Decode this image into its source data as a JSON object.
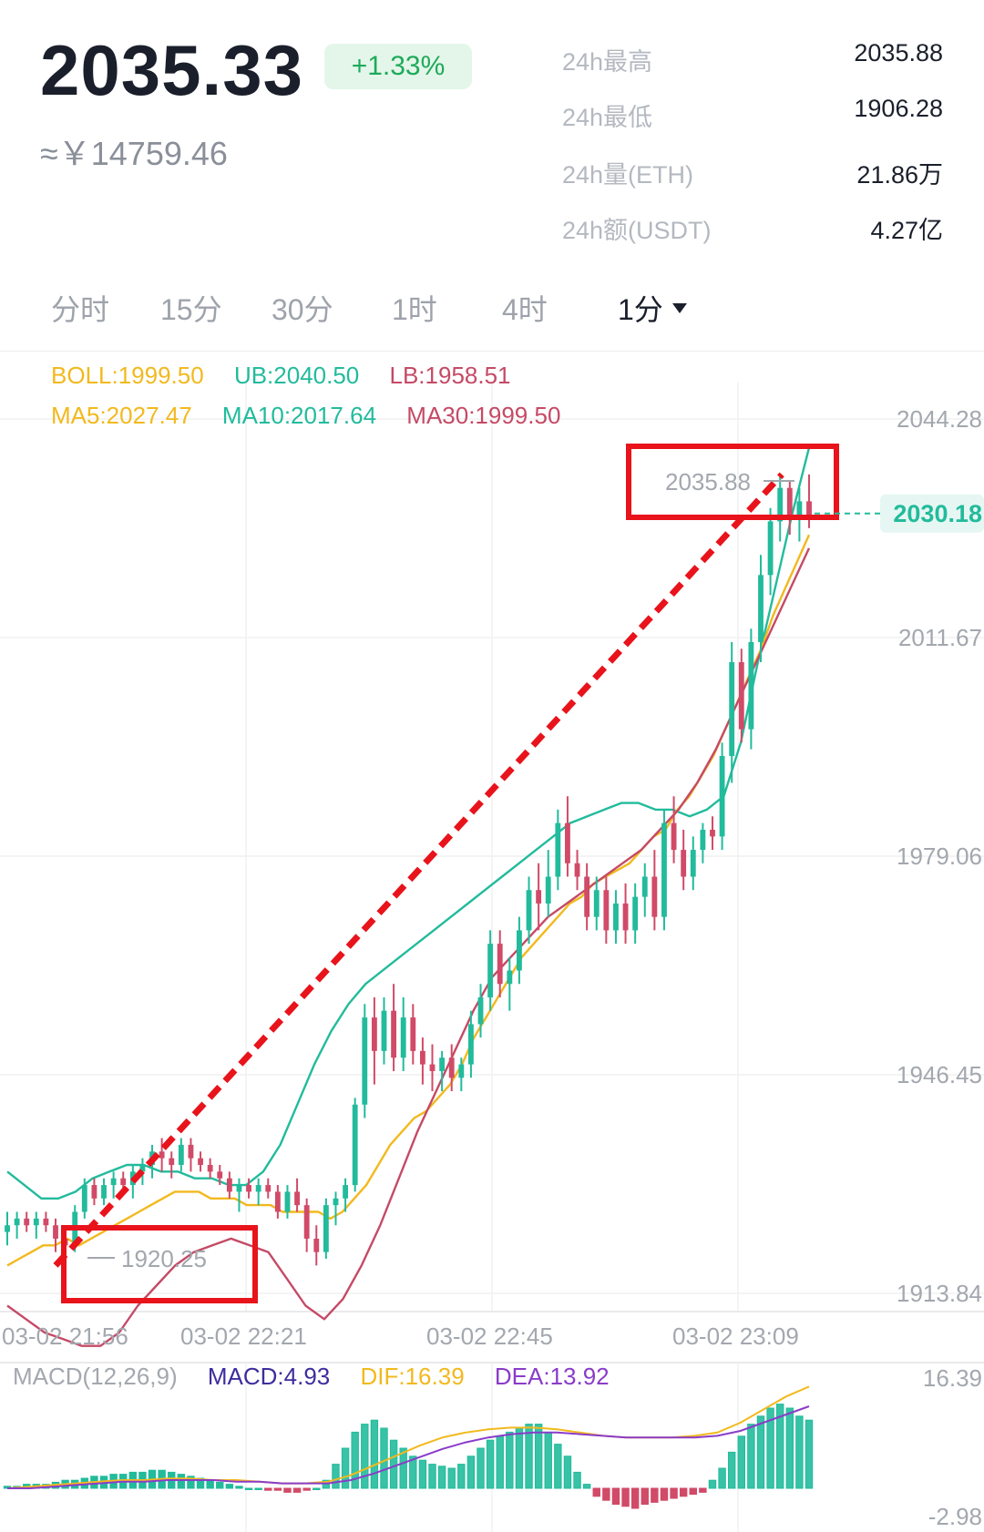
{
  "ticker": {
    "price": "2035.33",
    "change": "+1.33%",
    "cny": "≈￥14759.46"
  },
  "stats": [
    {
      "label": "24h最高",
      "value": "2035.88"
    },
    {
      "label": "24h最低",
      "value": "1906.28"
    },
    {
      "label": "24h量(ETH)",
      "value": "21.86万"
    },
    {
      "label": "24h额(USDT)",
      "value": "4.27亿"
    }
  ],
  "tabs": [
    {
      "label": "分时",
      "active": false
    },
    {
      "label": "15分",
      "active": false
    },
    {
      "label": "30分",
      "active": false
    },
    {
      "label": "1时",
      "active": false
    },
    {
      "label": "4时",
      "active": false
    },
    {
      "label": "1分",
      "active": true
    }
  ],
  "indicators": {
    "boll": "BOLL:1999.50",
    "ub": "UB:2040.50",
    "lb": "LB:1958.51",
    "ma5": "MA5:2027.47",
    "ma10": "MA10:2017.64",
    "ma30": "MA30:1999.50"
  },
  "colors": {
    "up": "#22bb9c",
    "down": "#d14a67",
    "boll_mid": "#f2b91e",
    "boll_band": "#22bb9c",
    "ma30": "#c54a66",
    "macd_label": "#3d2d9e",
    "dif": "#f2b91e",
    "dea": "#8a3cc9",
    "annotation": "#e8131b"
  },
  "price_axis": {
    "ticks": [
      "2044.28",
      "2011.67",
      "1979.06",
      "1946.45",
      "1913.84"
    ],
    "current": "2030.18",
    "high_marker": "2035.88",
    "low_marker": "1920.25"
  },
  "time_axis": [
    "03-02 21:56",
    "03-02 22:21",
    "03-02 22:45",
    "03-02 23:09"
  ],
  "macd": {
    "title": "MACD(12,26,9)",
    "macd": "MACD:4.93",
    "dif": "DIF:16.39",
    "dea": "DEA:13.92",
    "axis_top": "16.39",
    "axis_bottom": "-2.98"
  },
  "chart_data": {
    "type": "candlestick",
    "interval": "1分",
    "yticks": [
      2044.28,
      2011.67,
      1979.06,
      1946.45,
      1913.84
    ],
    "xticks": [
      "03-02 21:56",
      "03-02 22:21",
      "03-02 22:45",
      "03-02 23:09"
    ],
    "candles": [
      [
        1923,
        1926,
        1921,
        1924
      ],
      [
        1924,
        1926,
        1922,
        1925
      ],
      [
        1925,
        1926,
        1923,
        1924
      ],
      [
        1924,
        1926,
        1922,
        1925
      ],
      [
        1925,
        1926,
        1923,
        1924
      ],
      [
        1924,
        1925,
        1920,
        1922
      ],
      [
        1922,
        1923,
        1919,
        1921
      ],
      [
        1921,
        1927,
        1920,
        1926
      ],
      [
        1926,
        1931,
        1925,
        1930
      ],
      [
        1930,
        1931,
        1927,
        1928
      ],
      [
        1928,
        1931,
        1927,
        1930
      ],
      [
        1930,
        1932,
        1928,
        1931
      ],
      [
        1931,
        1932,
        1929,
        1930
      ],
      [
        1930,
        1933,
        1928,
        1932
      ],
      [
        1932,
        1934,
        1930,
        1933
      ],
      [
        1933,
        1936,
        1931,
        1935
      ],
      [
        1935,
        1937,
        1932,
        1934
      ],
      [
        1934,
        1935,
        1931,
        1933
      ],
      [
        1933,
        1937,
        1932,
        1936
      ],
      [
        1936,
        1937,
        1932,
        1934
      ],
      [
        1934,
        1935,
        1932,
        1933
      ],
      [
        1933,
        1934,
        1931,
        1932
      ],
      [
        1932,
        1933,
        1930,
        1931
      ],
      [
        1931,
        1932,
        1928,
        1929
      ],
      [
        1929,
        1931,
        1926,
        1930
      ],
      [
        1930,
        1931,
        1928,
        1929
      ],
      [
        1929,
        1931,
        1927,
        1930
      ],
      [
        1930,
        1931,
        1928,
        1929
      ],
      [
        1929,
        1930,
        1925,
        1926
      ],
      [
        1926,
        1930,
        1925,
        1929
      ],
      [
        1929,
        1931,
        1926,
        1927
      ],
      [
        1927,
        1928,
        1920,
        1922
      ],
      [
        1922,
        1924,
        1918,
        1920
      ],
      [
        1920,
        1928,
        1919,
        1927
      ],
      [
        1927,
        1929,
        1924,
        1928
      ],
      [
        1928,
        1931,
        1926,
        1930
      ],
      [
        1930,
        1943,
        1929,
        1942
      ],
      [
        1942,
        1957,
        1940,
        1955
      ],
      [
        1955,
        1958,
        1945,
        1950
      ],
      [
        1950,
        1958,
        1948,
        1956
      ],
      [
        1956,
        1960,
        1947,
        1949
      ],
      [
        1949,
        1958,
        1947,
        1955
      ],
      [
        1955,
        1957,
        1948,
        1950
      ],
      [
        1950,
        1952,
        1945,
        1948
      ],
      [
        1948,
        1951,
        1944,
        1947
      ],
      [
        1947,
        1950,
        1944,
        1949
      ],
      [
        1949,
        1951,
        1944,
        1946
      ],
      [
        1946,
        1949,
        1944,
        1948
      ],
      [
        1948,
        1956,
        1946,
        1954
      ],
      [
        1954,
        1960,
        1952,
        1958
      ],
      [
        1958,
        1968,
        1956,
        1966
      ],
      [
        1966,
        1968,
        1958,
        1960
      ],
      [
        1960,
        1964,
        1956,
        1962
      ],
      [
        1962,
        1970,
        1960,
        1968
      ],
      [
        1968,
        1976,
        1966,
        1974
      ],
      [
        1974,
        1978,
        1968,
        1972
      ],
      [
        1972,
        1980,
        1970,
        1976
      ],
      [
        1976,
        1986,
        1974,
        1984
      ],
      [
        1984,
        1988,
        1976,
        1978
      ],
      [
        1978,
        1980,
        1974,
        1976
      ],
      [
        1976,
        1978,
        1968,
        1970
      ],
      [
        1970,
        1976,
        1968,
        1974
      ],
      [
        1974,
        1976,
        1966,
        1968
      ],
      [
        1968,
        1974,
        1966,
        1972
      ],
      [
        1972,
        1975,
        1966,
        1968
      ],
      [
        1968,
        1975,
        1966,
        1973
      ],
      [
        1973,
        1978,
        1970,
        1976
      ],
      [
        1976,
        1980,
        1968,
        1970
      ],
      [
        1970,
        1986,
        1968,
        1984
      ],
      [
        1984,
        1988,
        1978,
        1980
      ],
      [
        1980,
        1983,
        1974,
        1976
      ],
      [
        1976,
        1982,
        1974,
        1980
      ],
      [
        1980,
        1984,
        1978,
        1983
      ],
      [
        1983,
        1985,
        1980,
        1982
      ],
      [
        1982,
        1996,
        1980,
        1994
      ],
      [
        1994,
        2011,
        1990,
        2008
      ],
      [
        2008,
        2010,
        1996,
        1998
      ],
      [
        1998,
        2013,
        1995,
        2011
      ],
      [
        2011,
        2024,
        2008,
        2021
      ],
      [
        2021,
        2031,
        2018,
        2029
      ],
      [
        2029,
        2036,
        2026,
        2034
      ],
      [
        2034,
        2035,
        2027,
        2030
      ],
      [
        2030,
        2034,
        2026,
        2032
      ],
      [
        2032,
        2036,
        2028,
        2030
      ]
    ],
    "boll_mid": [
      1918,
      1919,
      1920,
      1921,
      1921,
      1922,
      1921,
      1922,
      1923,
      1924,
      1925,
      1926,
      1927,
      1928,
      1929,
      1929,
      1929,
      1928,
      1928,
      1928,
      1927,
      1927,
      1927,
      1926,
      1926,
      1926,
      1926,
      1925,
      1926,
      1928,
      1930,
      1933,
      1936,
      1938,
      1940,
      1941,
      1943,
      1945,
      1948,
      1952,
      1955,
      1958,
      1961,
      1964,
      1966,
      1968,
      1970,
      1972,
      1973,
      1975,
      1976,
      1977,
      1978,
      1980,
      1982,
      1983,
      1986,
      1988,
      1991,
      1994,
      1998,
      2002,
      2006,
      2010,
      2015,
      2019,
      2023,
      2027
    ],
    "boll_ub": [
      1932,
      1930,
      1928,
      1928,
      1929,
      1931,
      1932,
      1933,
      1933,
      1932,
      1932,
      1931,
      1931,
      1930,
      1930,
      1932,
      1936,
      1942,
      1948,
      1953,
      1957,
      1960,
      1962,
      1964,
      1966,
      1968,
      1970,
      1972,
      1974,
      1976,
      1978,
      1980,
      1982,
      1984,
      1985,
      1986,
      1987,
      1987,
      1986,
      1986,
      1985,
      1986,
      1988,
      1996,
      2008,
      2019,
      2030,
      2040
    ],
    "boll_lb": [
      1912,
      1910,
      1908,
      1907,
      1906,
      1906,
      1908,
      1912,
      1915,
      1918,
      1920,
      1921,
      1922,
      1921,
      1920,
      1916,
      1912,
      1910,
      1913,
      1918,
      1924,
      1931,
      1938,
      1944,
      1950,
      1956,
      1961,
      1964,
      1967,
      1970,
      1972,
      1974,
      1976,
      1978,
      1980,
      1983,
      1986,
      1990,
      1995,
      2001,
      2007,
      2013,
      2019,
      2025
    ]
  }
}
